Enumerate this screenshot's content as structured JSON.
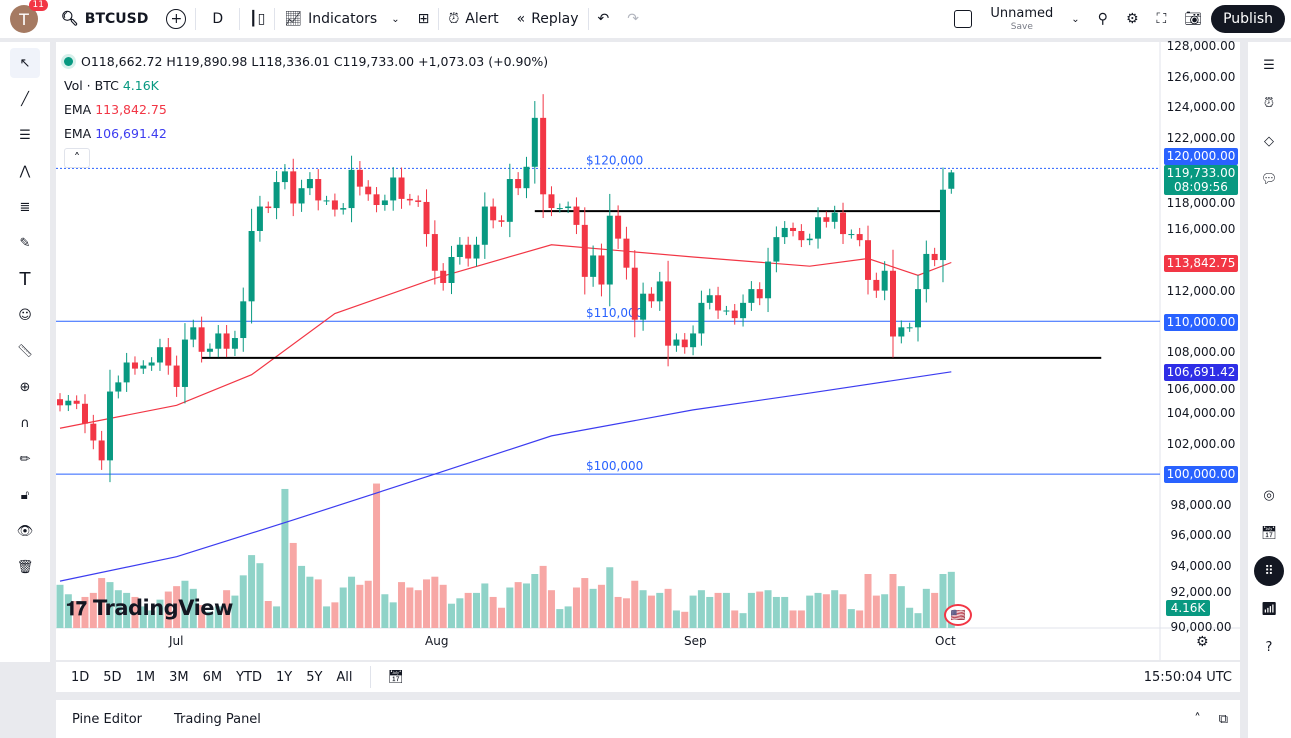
{
  "topbar": {
    "avatar_letter": "T",
    "notifications": "11",
    "symbol": "BTCUSD",
    "interval": "D",
    "indicators": "Indicators",
    "alert": "Alert",
    "replay": "Replay",
    "layout_name": "Unnamed",
    "save": "Save",
    "publish": "Publish"
  },
  "legend": {
    "ohlc": "O118,662.72 H119,890.98 L118,336.01 C119,733.00 +1,073.03 (+0.90%)",
    "vol_label": "Vol · BTC",
    "vol_value": "4.16K",
    "ema1_label": "EMA",
    "ema1_value": "113,842.75",
    "ema2_label": "EMA",
    "ema2_value": "106,691.42"
  },
  "colors": {
    "up": "#089981",
    "down": "#f23645",
    "ema_fast": "#f23645",
    "ema_slow": "#3c3cf0",
    "hline": "#2962ff",
    "vol_up": "#8fd3c8",
    "vol_down": "#f7a7a5"
  },
  "price_axis": {
    "ticks": [
      "128,000.00",
      "126,000.00",
      "124,000.00",
      "122,000.00",
      "118,000.00",
      "116,000.00",
      "112,000.00",
      "108,000.00",
      "106,000.00",
      "104,000.00",
      "102,000.00",
      "98,000.00",
      "96,000.00",
      "94,000.00",
      "92,000.00",
      "90,000.00"
    ],
    "labels": {
      "h120": "120,000.00",
      "last": "119,733.00",
      "countdown": "08:09:56",
      "ema1": "113,842.75",
      "h110": "110,000.00",
      "ema2": "106,691.42",
      "h100": "100,000.00",
      "vol": "4.16K"
    }
  },
  "hlines": [
    {
      "price": 120000,
      "label": "$120,000"
    },
    {
      "price": 110000,
      "label": "$110,000"
    },
    {
      "price": 100000,
      "label": "$100,000"
    }
  ],
  "trendlines": [
    {
      "from": "2025-08-13",
      "to": "2025-10-01",
      "price": 117200
    },
    {
      "from": "2025-07-04",
      "to": "2025-10-20",
      "price": 107600
    }
  ],
  "time_axis": [
    "Jul",
    "Aug",
    "Sep",
    "Oct"
  ],
  "watermark": "TradingView",
  "bottom": {
    "ranges": [
      "1D",
      "5D",
      "1M",
      "3M",
      "6M",
      "YTD",
      "1Y",
      "5Y",
      "All"
    ],
    "clock": "15:50:04 UTC",
    "pine": "Pine Editor",
    "trading": "Trading Panel"
  },
  "chart_data": {
    "type": "candlestick",
    "start_date": "2025-06-17",
    "unit": "thousand USD",
    "closes": [
      104.5,
      104.8,
      104.6,
      103.3,
      102.2,
      100.9,
      105.4,
      106,
      107.3,
      106.9,
      107.1,
      107.3,
      108.3,
      107.1,
      105.7,
      108.8,
      109.6,
      108,
      108.2,
      109.2,
      108.2,
      108.9,
      111.3,
      115.9,
      117.5,
      117.4,
      119.1,
      119.8,
      117.7,
      118.7,
      119.3,
      117.9,
      117.9,
      117.3,
      117.4,
      119.9,
      118.8,
      118.3,
      117.6,
      117.9,
      119.4,
      118,
      117.9,
      117.8,
      115.7,
      113.3,
      112.5,
      114.2,
      115,
      114.1,
      115,
      117.5,
      116.6,
      116.5,
      119.3,
      118.7,
      120.1,
      123.3,
      118.3,
      117.4,
      117.4,
      117.5,
      116.3,
      112.9,
      114.3,
      112.4,
      116.9,
      115.4,
      113.5,
      110.1,
      111.8,
      111.3,
      112.6,
      108.4,
      108.8,
      108.3,
      109.2,
      111.2,
      111.7,
      110.7,
      110.7,
      110.2,
      111.2,
      112.1,
      111.5,
      113.9,
      115.5,
      116.1,
      115.9,
      115.3,
      115.4,
      116.8,
      116.5,
      117.1,
      115.7,
      115.7,
      115.3,
      112.7,
      112,
      113.3,
      109,
      109.6,
      109.6,
      112.1,
      114.4,
      114,
      118.6,
      119.733
    ],
    "last_candle": {
      "open": 118662.72,
      "high": 119890.98,
      "low": 118336.01,
      "close": 119733.0
    },
    "volumes_k": [
      3.2,
      2.5,
      2.0,
      2.3,
      2.6,
      3.7,
      3.4,
      2.8,
      2.6,
      2.3,
      1.6,
      1.3,
      2.1,
      2.7,
      3.1,
      3.5,
      2.9,
      1.7,
      1.2,
      1.6,
      2.8,
      2.4,
      3.9,
      5.4,
      4.8,
      2.0,
      1.6,
      10.3,
      6.3,
      4.6,
      3.8,
      3.6,
      1.6,
      1.9,
      3.0,
      3.8,
      3.2,
      3.5,
      10.7,
      2.5,
      1.9,
      3.4,
      3.0,
      2.8,
      3.6,
      3.8,
      3.2,
      1.8,
      2.2,
      2.6,
      2.6,
      3.3,
      2.3,
      1.5,
      3.0,
      3.4,
      3.3,
      4.0,
      4.6,
      2.8,
      1.4,
      1.6,
      3.0,
      3.7,
      2.9,
      3.2,
      4.5,
      2.3,
      2.2,
      3.5,
      2.8,
      2.4,
      2.6,
      2.9,
      1.3,
      1.2,
      2.4,
      2.8,
      2.3,
      2.6,
      2.6,
      1.3,
      1.1,
      2.6,
      2.7,
      2.8,
      2.3,
      2.3,
      1.3,
      1.3,
      2.4,
      2.6,
      2.5,
      2.8,
      2.5,
      1.4,
      1.3,
      4.0,
      2.4,
      2.5,
      4.0,
      3.1,
      1.5,
      1.1,
      2.9,
      2.6,
      4.0,
      4.16
    ],
    "ema_fast": [
      [
        "2025-06-17",
        103
      ],
      [
        "2025-07-01",
        104.5
      ],
      [
        "2025-07-10",
        106.5
      ],
      [
        "2025-07-20",
        110.5
      ],
      [
        "2025-08-01",
        112.8
      ],
      [
        "2025-08-15",
        115
      ],
      [
        "2025-09-01",
        114.2
      ],
      [
        "2025-09-15",
        113.6
      ],
      [
        "2025-09-22",
        114.1
      ],
      [
        "2025-09-28",
        113
      ],
      [
        "2025-10-02",
        113.84
      ]
    ],
    "ema_slow": [
      [
        "2025-06-17",
        93
      ],
      [
        "2025-07-01",
        94.6
      ],
      [
        "2025-07-15",
        97
      ],
      [
        "2025-08-01",
        100
      ],
      [
        "2025-08-15",
        102.5
      ],
      [
        "2025-09-01",
        104.2
      ],
      [
        "2025-09-15",
        105.3
      ],
      [
        "2025-10-02",
        106.69
      ]
    ],
    "ylim": [
      90000,
      128000
    ]
  }
}
